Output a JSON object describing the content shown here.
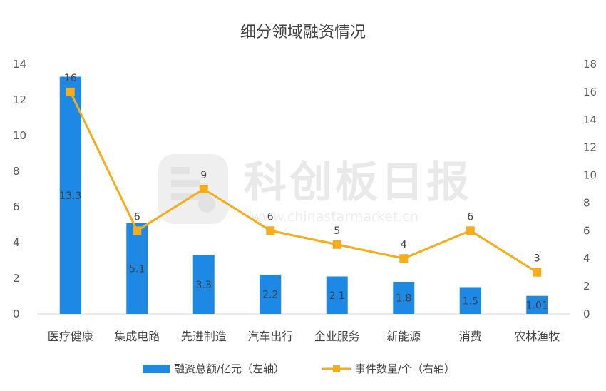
{
  "chart_data": {
    "type": "bar+line",
    "title": "细分领域融资情况",
    "categories": [
      "医疗健康",
      "集成电路",
      "先进制造",
      "汽车出行",
      "企业服务",
      "新能源",
      "消费",
      "农林渔牧"
    ],
    "series": [
      {
        "name": "融资总额/亿元（左轴）",
        "type": "bar",
        "axis": "left",
        "color": "#1e88e5",
        "values": [
          13.3,
          5.1,
          3.3,
          2.2,
          2.1,
          1.8,
          1.5,
          1.01
        ],
        "labels": [
          "13.3",
          "5.1",
          "3.3",
          "2.2",
          "2.1",
          "1.8",
          "1.5",
          "1.01"
        ]
      },
      {
        "name": "事件数量/个（右轴）",
        "type": "line",
        "axis": "right",
        "color": "#f5ad1b",
        "values": [
          16,
          6,
          9,
          6,
          5,
          4,
          6,
          3
        ],
        "labels": [
          "16",
          "6",
          "9",
          "6",
          "5",
          "4",
          "6",
          "3"
        ]
      }
    ],
    "y_left": {
      "min": 0,
      "max": 14,
      "ticks": [
        "0",
        "2",
        "4",
        "6",
        "8",
        "10",
        "12",
        "14"
      ]
    },
    "y_right": {
      "min": 0,
      "max": 18,
      "ticks": [
        "0",
        "2",
        "4",
        "6",
        "8",
        "10",
        "12",
        "14",
        "16",
        "18"
      ]
    },
    "grid": false,
    "legend": "bottom"
  },
  "watermark": {
    "text": "科创板日报",
    "url": "www.chinastarmarket.cn"
  }
}
